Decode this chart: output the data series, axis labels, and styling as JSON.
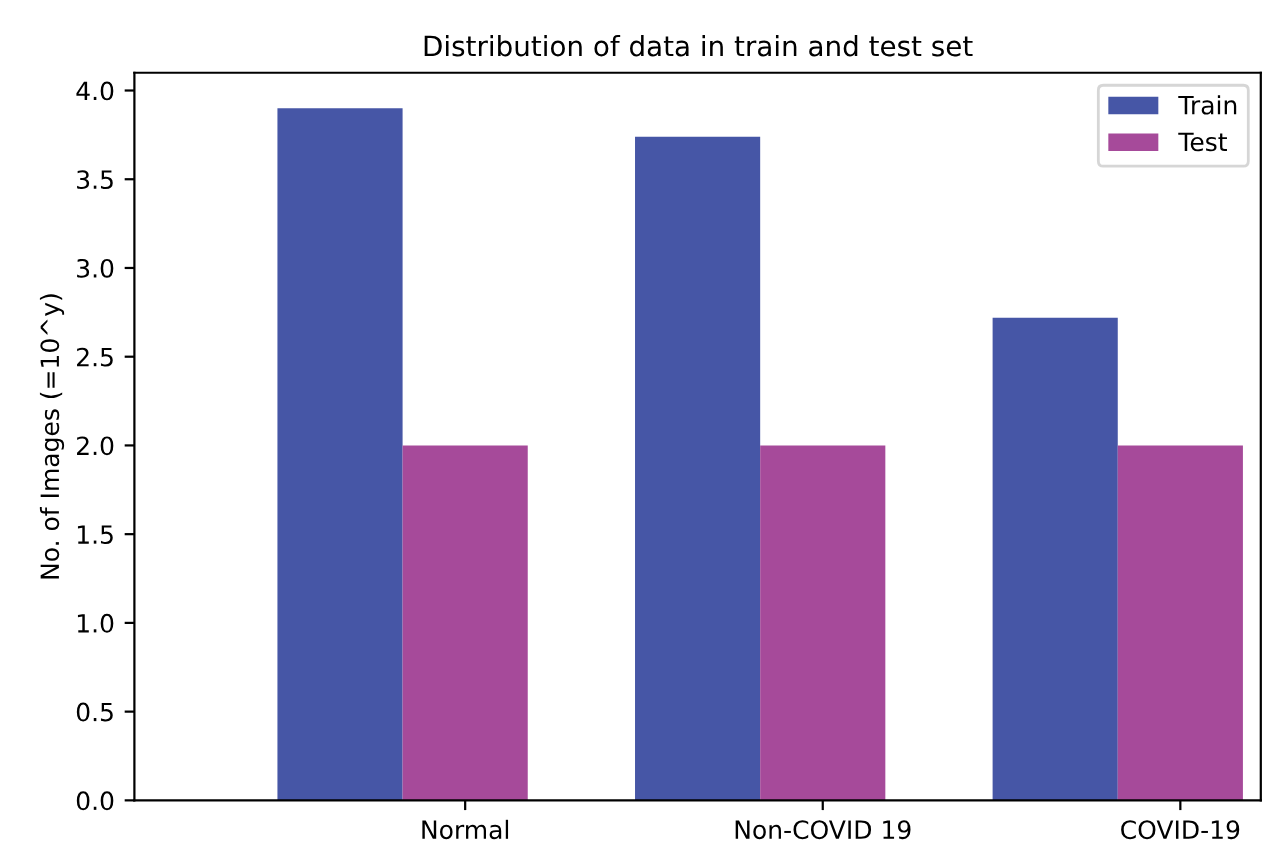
{
  "chart_data": {
    "type": "bar",
    "title": "Distribution of data in train and test set",
    "ylabel": "No. of Images (=10^y)",
    "categories": [
      "Normal",
      "Non-COVID 19",
      "COVID-19"
    ],
    "series": [
      {
        "name": "Train",
        "color": "#4656a6",
        "values": [
          3.9,
          3.74,
          2.72
        ]
      },
      {
        "name": "Test",
        "color": "#a64a9a",
        "values": [
          2.0,
          2.0,
          2.0
        ]
      }
    ],
    "ylim": [
      0,
      4.1
    ],
    "yticks": [
      {
        "value": 0,
        "label": "0.0"
      },
      0.5,
      {
        "value": 1,
        "label": "1.0"
      },
      1.5,
      {
        "value": 2,
        "label": "2.0"
      },
      2.5,
      {
        "value": 3,
        "label": "3.0"
      },
      3.5,
      {
        "value": 4,
        "label": "4.0"
      }
    ],
    "grid": false,
    "legend": "top right"
  }
}
